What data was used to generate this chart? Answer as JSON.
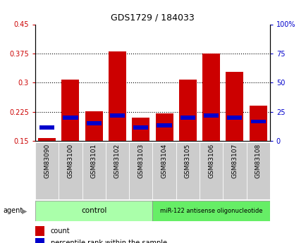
{
  "title": "GDS1729 / 184033",
  "samples": [
    "GSM83090",
    "GSM83100",
    "GSM83101",
    "GSM83102",
    "GSM83103",
    "GSM83104",
    "GSM83105",
    "GSM83106",
    "GSM83107",
    "GSM83108"
  ],
  "count_values": [
    0.157,
    0.308,
    0.227,
    0.381,
    0.21,
    0.22,
    0.308,
    0.375,
    0.328,
    0.24
  ],
  "percentile_values": [
    0.185,
    0.21,
    0.195,
    0.215,
    0.185,
    0.19,
    0.21,
    0.215,
    0.21,
    0.2
  ],
  "count_color": "#cc0000",
  "percentile_color": "#0000cc",
  "bar_bottom": 0.15,
  "ylim_left": [
    0.15,
    0.45
  ],
  "ylim_right": [
    0,
    100
  ],
  "yticks_left": [
    0.15,
    0.225,
    0.3,
    0.375,
    0.45
  ],
  "yticks_right": [
    0,
    25,
    50,
    75,
    100
  ],
  "ytick_labels_left": [
    "0.15",
    "0.225",
    "0.3",
    "0.375",
    "0.45"
  ],
  "ytick_labels_right": [
    "0",
    "25",
    "50",
    "75",
    "100%"
  ],
  "control_label": "control",
  "treatment_label": "miR-122 antisense oligonucleotide",
  "control_color": "#aaffaa",
  "treatment_color": "#66ee66",
  "agent_label": "agent",
  "legend_count": "count",
  "legend_percentile": "percentile rank within the sample",
  "xtick_bg_color": "#cccccc",
  "bar_width": 0.75,
  "n_control": 5,
  "n_treatment": 5
}
